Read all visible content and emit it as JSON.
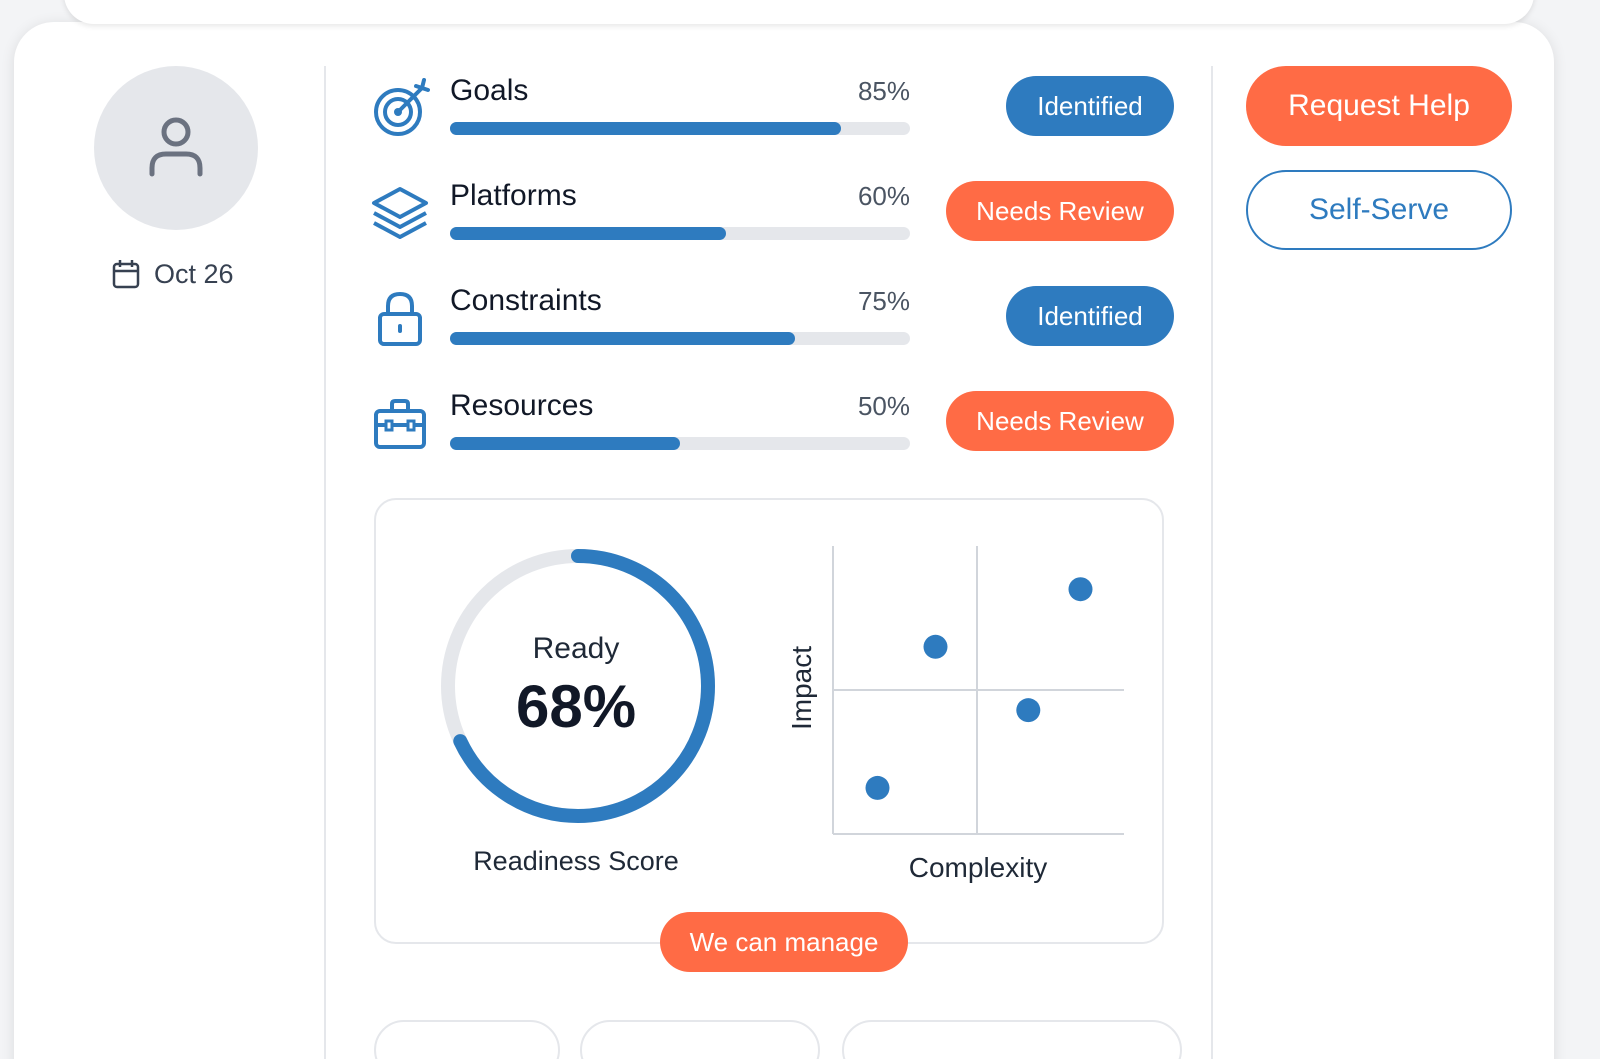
{
  "profile": {
    "date": "Oct 26",
    "avatar_icon": "user-icon",
    "date_icon": "calendar-icon"
  },
  "metrics": [
    {
      "name": "Goals",
      "percent_label": "85%",
      "progress": 0.85,
      "status": "Identified",
      "status_color": "#2e7bbf",
      "icon": "target-icon"
    },
    {
      "name": "Platforms",
      "percent_label": "60%",
      "progress": 0.6,
      "status": "Needs Review",
      "status_color": "#ff6b45",
      "icon": "layers-icon"
    },
    {
      "name": "Constraints",
      "percent_label": "75%",
      "progress": 0.75,
      "status": "Identified",
      "status_color": "#2e7bbf",
      "icon": "lock-icon"
    },
    {
      "name": "Resources",
      "percent_label": "50%",
      "progress": 0.5,
      "status": "Needs Review",
      "status_color": "#ff6b45",
      "icon": "briefcase-icon"
    }
  ],
  "readiness": {
    "label": "Ready",
    "value_label": "68%",
    "score": 0.68,
    "caption": "Readiness Score"
  },
  "matrix": {
    "x_label": "Complexity",
    "y_label": "Impact",
    "points": [
      {
        "complexity": 0.67,
        "impact": 0.43
      },
      {
        "complexity": 0.35,
        "impact": 0.65
      },
      {
        "complexity": 0.85,
        "impact": 0.85
      },
      {
        "complexity": 0.15,
        "impact": 0.16
      }
    ]
  },
  "panel": {
    "badge": "We can manage"
  },
  "actions": {
    "request_help": "Request Help",
    "self_serve": "Self-Serve"
  },
  "colors": {
    "accent_blue": "#2e7bbf",
    "accent_orange": "#ff6b45",
    "track": "#e5e7eb"
  }
}
